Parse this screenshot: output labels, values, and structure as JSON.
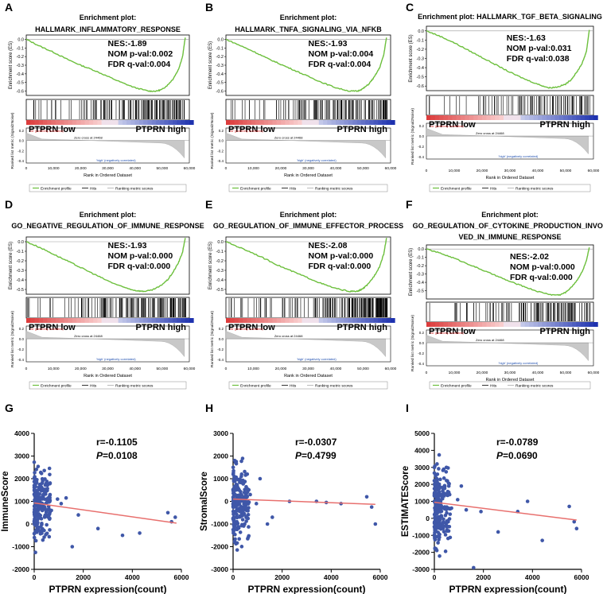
{
  "colors": {
    "es_line": "#6cbf3c",
    "scatter_point": "#3f57a8",
    "regression_line": "#e8706e",
    "metric_fill": "#c8c8c8",
    "high_corr": "#1f4fb0",
    "low_corr": "#d42a2a"
  },
  "common": {
    "ylabel_es": "Enrichment score (ES)",
    "ylabel_metric": "Ranked list metric (Signal2Noise)",
    "xlabel": "Rank in Ordered Dataset",
    "zero_cross": "Zero cross at 24468",
    "pos_corr": "'na' (positively correlated)",
    "neg_corr": "'high' (negatively correlated)",
    "legend": [
      "Enrichment profile",
      "Hits",
      "Ranking metric scores"
    ],
    "group_low": "PTPRN low",
    "group_high": "PTPRN high",
    "x_ticks": [
      "0",
      "10,000",
      "20,000",
      "30,000",
      "40,000",
      "50,000",
      "60,000"
    ],
    "metric_ticks": [
      "0.2",
      "0.0",
      "-0.2",
      "-0.4"
    ]
  },
  "chart_data": [
    {
      "panel": "A",
      "type": "line",
      "title_line1": "Enrichment plot:",
      "title_line2": "HALLMARK_INFLAMMATORY_RESPONSE",
      "nes": "NES:-1.89",
      "nom": "NOM p-val:0.002",
      "fdr": "FDR q-val:0.004",
      "yticks": [
        "0.0",
        "-0.1",
        "-0.2",
        "-0.3",
        "-0.4",
        "-0.5",
        "-0.6"
      ],
      "ymin": -0.65,
      "ymax": 0.05,
      "x": [
        0,
        5000,
        10000,
        15000,
        20000,
        25000,
        30000,
        35000,
        40000,
        45000,
        48000,
        50000,
        52000,
        54000,
        56000,
        57500,
        58500
      ],
      "es": [
        0.0,
        -0.08,
        -0.15,
        -0.23,
        -0.3,
        -0.36,
        -0.43,
        -0.5,
        -0.56,
        -0.6,
        -0.6,
        -0.58,
        -0.53,
        -0.46,
        -0.35,
        -0.2,
        0.02
      ],
      "min_rank": 47500,
      "hit_density": 0.55
    },
    {
      "panel": "B",
      "type": "line",
      "title_line1": "Enrichment plot:",
      "title_line2": "HALLMARK_TNFA_SIGNALING_VIA_NFKB",
      "nes": "NES:-1.93",
      "nom": "NOM p-val:0.004",
      "fdr": "FDR q-val:0.004",
      "yticks": [
        "0.0",
        "-0.1",
        "-0.2",
        "-0.3",
        "-0.4",
        "-0.5",
        "-0.6"
      ],
      "ymin": -0.65,
      "ymax": 0.05,
      "x": [
        0,
        5000,
        10000,
        15000,
        20000,
        25000,
        30000,
        35000,
        40000,
        45000,
        48000,
        50000,
        52000,
        54000,
        56000,
        57500,
        58500
      ],
      "es": [
        0.0,
        -0.07,
        -0.14,
        -0.22,
        -0.29,
        -0.36,
        -0.43,
        -0.5,
        -0.56,
        -0.6,
        -0.6,
        -0.57,
        -0.52,
        -0.44,
        -0.33,
        -0.18,
        0.02
      ],
      "min_rank": 47000,
      "hit_density": 0.55
    },
    {
      "panel": "C",
      "type": "line",
      "title_line1": "Enrichment plot: HALLMARK_TGF_BETA_SIGNALING",
      "title_line2": "",
      "nes": "NES:-1.63",
      "nom": "NOM p-val:0.031",
      "fdr": "FDR q-val:0.038",
      "yticks": [
        "0.0",
        "-0.1",
        "-0.2",
        "-0.3",
        "-0.4",
        "-0.5",
        "-0.6"
      ],
      "ymin": -0.65,
      "ymax": 0.05,
      "x": [
        0,
        5000,
        10000,
        15000,
        20000,
        25000,
        30000,
        35000,
        40000,
        44000,
        47000,
        50000,
        52000,
        54000,
        56000,
        57500,
        58500
      ],
      "es": [
        0.0,
        -0.06,
        -0.13,
        -0.21,
        -0.29,
        -0.37,
        -0.45,
        -0.52,
        -0.58,
        -0.62,
        -0.61,
        -0.58,
        -0.53,
        -0.45,
        -0.35,
        -0.22,
        0.01
      ],
      "min_rank": 44000,
      "hit_density": 0.25
    },
    {
      "panel": "D",
      "type": "line",
      "title_line1": "Enrichment plot:",
      "title_line2": "GO_NEGATIVE_REGULATION_OF_IMMUNE_RESPONSE",
      "nes": "NES:-1.93",
      "nom": "NOM p-val:0.000",
      "fdr": "FDR q-val:0.000",
      "yticks": [
        "0.0",
        "-0.1",
        "-0.2",
        "-0.3",
        "-0.4",
        "-0.5"
      ],
      "ymin": -0.55,
      "ymax": 0.05,
      "x": [
        0,
        5000,
        10000,
        15000,
        20000,
        25000,
        30000,
        35000,
        40000,
        43000,
        46000,
        49000,
        52000,
        54000,
        56000,
        57500,
        58500
      ],
      "es": [
        0.0,
        -0.06,
        -0.13,
        -0.2,
        -0.27,
        -0.34,
        -0.41,
        -0.47,
        -0.51,
        -0.52,
        -0.51,
        -0.47,
        -0.4,
        -0.32,
        -0.22,
        -0.11,
        0.04
      ],
      "min_rank": 42000,
      "hit_density": 0.6
    },
    {
      "panel": "E",
      "type": "line",
      "title_line1": "Enrichment plot:",
      "title_line2": "GO_REGULATION_OF_IMMUNE_EFFECTOR_PROCESS",
      "nes": "NES:-2.08",
      "nom": "NOM p-val:0.000",
      "fdr": "FDR q-val:0.000",
      "yticks": [
        "0.0",
        "-0.1",
        "-0.2",
        "-0.3",
        "-0.4",
        "-0.5"
      ],
      "ymin": -0.55,
      "ymax": 0.05,
      "x": [
        0,
        5000,
        10000,
        15000,
        20000,
        25000,
        30000,
        35000,
        40000,
        45000,
        48000,
        50000,
        52000,
        54000,
        56000,
        57500,
        58500
      ],
      "es": [
        0.0,
        -0.06,
        -0.12,
        -0.19,
        -0.26,
        -0.32,
        -0.38,
        -0.44,
        -0.49,
        -0.52,
        -0.52,
        -0.49,
        -0.44,
        -0.36,
        -0.26,
        -0.13,
        0.04
      ],
      "min_rank": 47000,
      "hit_density": 0.95
    },
    {
      "panel": "F",
      "type": "line",
      "title_line1": "Enrichment plot:",
      "title_line2": "GO_REGULATION_OF_CYTOKINE_PRODUCTION_INVOL",
      "title_line3": "VED_IN_IMMUNE_RESPONSE",
      "nes": "NES:-2.02",
      "nom": "NOM p-val:0.000",
      "fdr": "FDR q-val:0.000",
      "yticks": [
        "0.0",
        "-0.1",
        "-0.2",
        "-0.3",
        "-0.4",
        "-0.5"
      ],
      "ymin": -0.6,
      "ymax": 0.05,
      "x": [
        0,
        5000,
        10000,
        15000,
        20000,
        25000,
        30000,
        35000,
        40000,
        45000,
        48000,
        50000,
        52000,
        54000,
        56000,
        57500,
        58500
      ],
      "es": [
        0.0,
        -0.05,
        -0.11,
        -0.18,
        -0.25,
        -0.32,
        -0.39,
        -0.45,
        -0.51,
        -0.55,
        -0.55,
        -0.52,
        -0.46,
        -0.38,
        -0.27,
        -0.14,
        0.02
      ],
      "min_rank": 46000,
      "hit_density": 0.45
    },
    {
      "panel": "G",
      "type": "scatter",
      "ylabel": "ImmuneScore",
      "xlabel": "PTPRN expression(count)",
      "r": "r=-0.1105",
      "p_label": "P",
      "p_value": "=0.0108",
      "xlim": [
        0,
        6000
      ],
      "ylim": [
        -2000,
        4000
      ],
      "xticks": [
        "0",
        "2000",
        "4000",
        "6000"
      ],
      "yticks": [
        "4000",
        "3000",
        "2000",
        "1000",
        "0",
        "-1000",
        "-2000"
      ],
      "fit": [
        [
          0,
          930
        ],
        [
          5800,
          40
        ]
      ],
      "outliers": [
        [
          700,
          600
        ],
        [
          950,
          1100
        ],
        [
          1100,
          900
        ],
        [
          1300,
          1150
        ],
        [
          1550,
          -1000
        ],
        [
          1800,
          400
        ],
        [
          2600,
          -200
        ],
        [
          3600,
          -500
        ],
        [
          4300,
          -400
        ],
        [
          5450,
          500
        ],
        [
          5600,
          100
        ],
        [
          5750,
          300
        ]
      ],
      "cluster": {
        "xmax": 650,
        "ymin": -1400,
        "ymax": 3100,
        "n": 220
      }
    },
    {
      "panel": "H",
      "type": "scatter",
      "ylabel": "StromalScore",
      "xlabel": "PTPRN expression(count)",
      "r": "r=-0.0307",
      "p_label": "P",
      "p_value": "=0.4799",
      "xlim": [
        0,
        6000
      ],
      "ylim": [
        -3000,
        3000
      ],
      "xticks": [
        "0",
        "2000",
        "4000",
        "6000"
      ],
      "yticks": [
        "3000",
        "2000",
        "1000",
        "0",
        "-1000",
        "-2000",
        "-3000"
      ],
      "fit": [
        [
          0,
          100
        ],
        [
          5800,
          -130
        ]
      ],
      "outliers": [
        [
          700,
          300
        ],
        [
          950,
          -100
        ],
        [
          1100,
          1000
        ],
        [
          1400,
          -1000
        ],
        [
          1600,
          -700
        ],
        [
          2300,
          0
        ],
        [
          3400,
          0
        ],
        [
          3800,
          -50
        ],
        [
          4400,
          -100
        ],
        [
          5450,
          200
        ],
        [
          5650,
          -250
        ],
        [
          5800,
          -1000
        ]
      ],
      "cluster": {
        "xmax": 650,
        "ymin": -2500,
        "ymax": 2200,
        "n": 220
      }
    },
    {
      "panel": "I",
      "type": "scatter",
      "ylabel": "ESTIMATEScore",
      "xlabel": "PTPRN expression(count)",
      "r": "r=-0.0789",
      "p_label": "P",
      "p_value": "=0.0690",
      "xlim": [
        0,
        6000
      ],
      "ylim": [
        -3000,
        5000
      ],
      "xticks": [
        "0",
        "2000",
        "4000",
        "6000"
      ],
      "yticks": [
        "5000",
        "4000",
        "3000",
        "2000",
        "1000",
        "0",
        "-1000",
        "-2000",
        "-3000"
      ],
      "fit": [
        [
          0,
          950
        ],
        [
          5800,
          -100
        ]
      ],
      "outliers": [
        [
          700,
          600
        ],
        [
          950,
          1100
        ],
        [
          1100,
          1900
        ],
        [
          1300,
          500
        ],
        [
          1600,
          -2900
        ],
        [
          1900,
          400
        ],
        [
          2600,
          -800
        ],
        [
          3400,
          400
        ],
        [
          3800,
          1000
        ],
        [
          4400,
          -1300
        ],
        [
          5500,
          700
        ],
        [
          5700,
          -200
        ],
        [
          5800,
          -600
        ]
      ],
      "cluster": {
        "xmax": 650,
        "ymin": -3000,
        "ymax": 4300,
        "n": 230
      }
    }
  ]
}
